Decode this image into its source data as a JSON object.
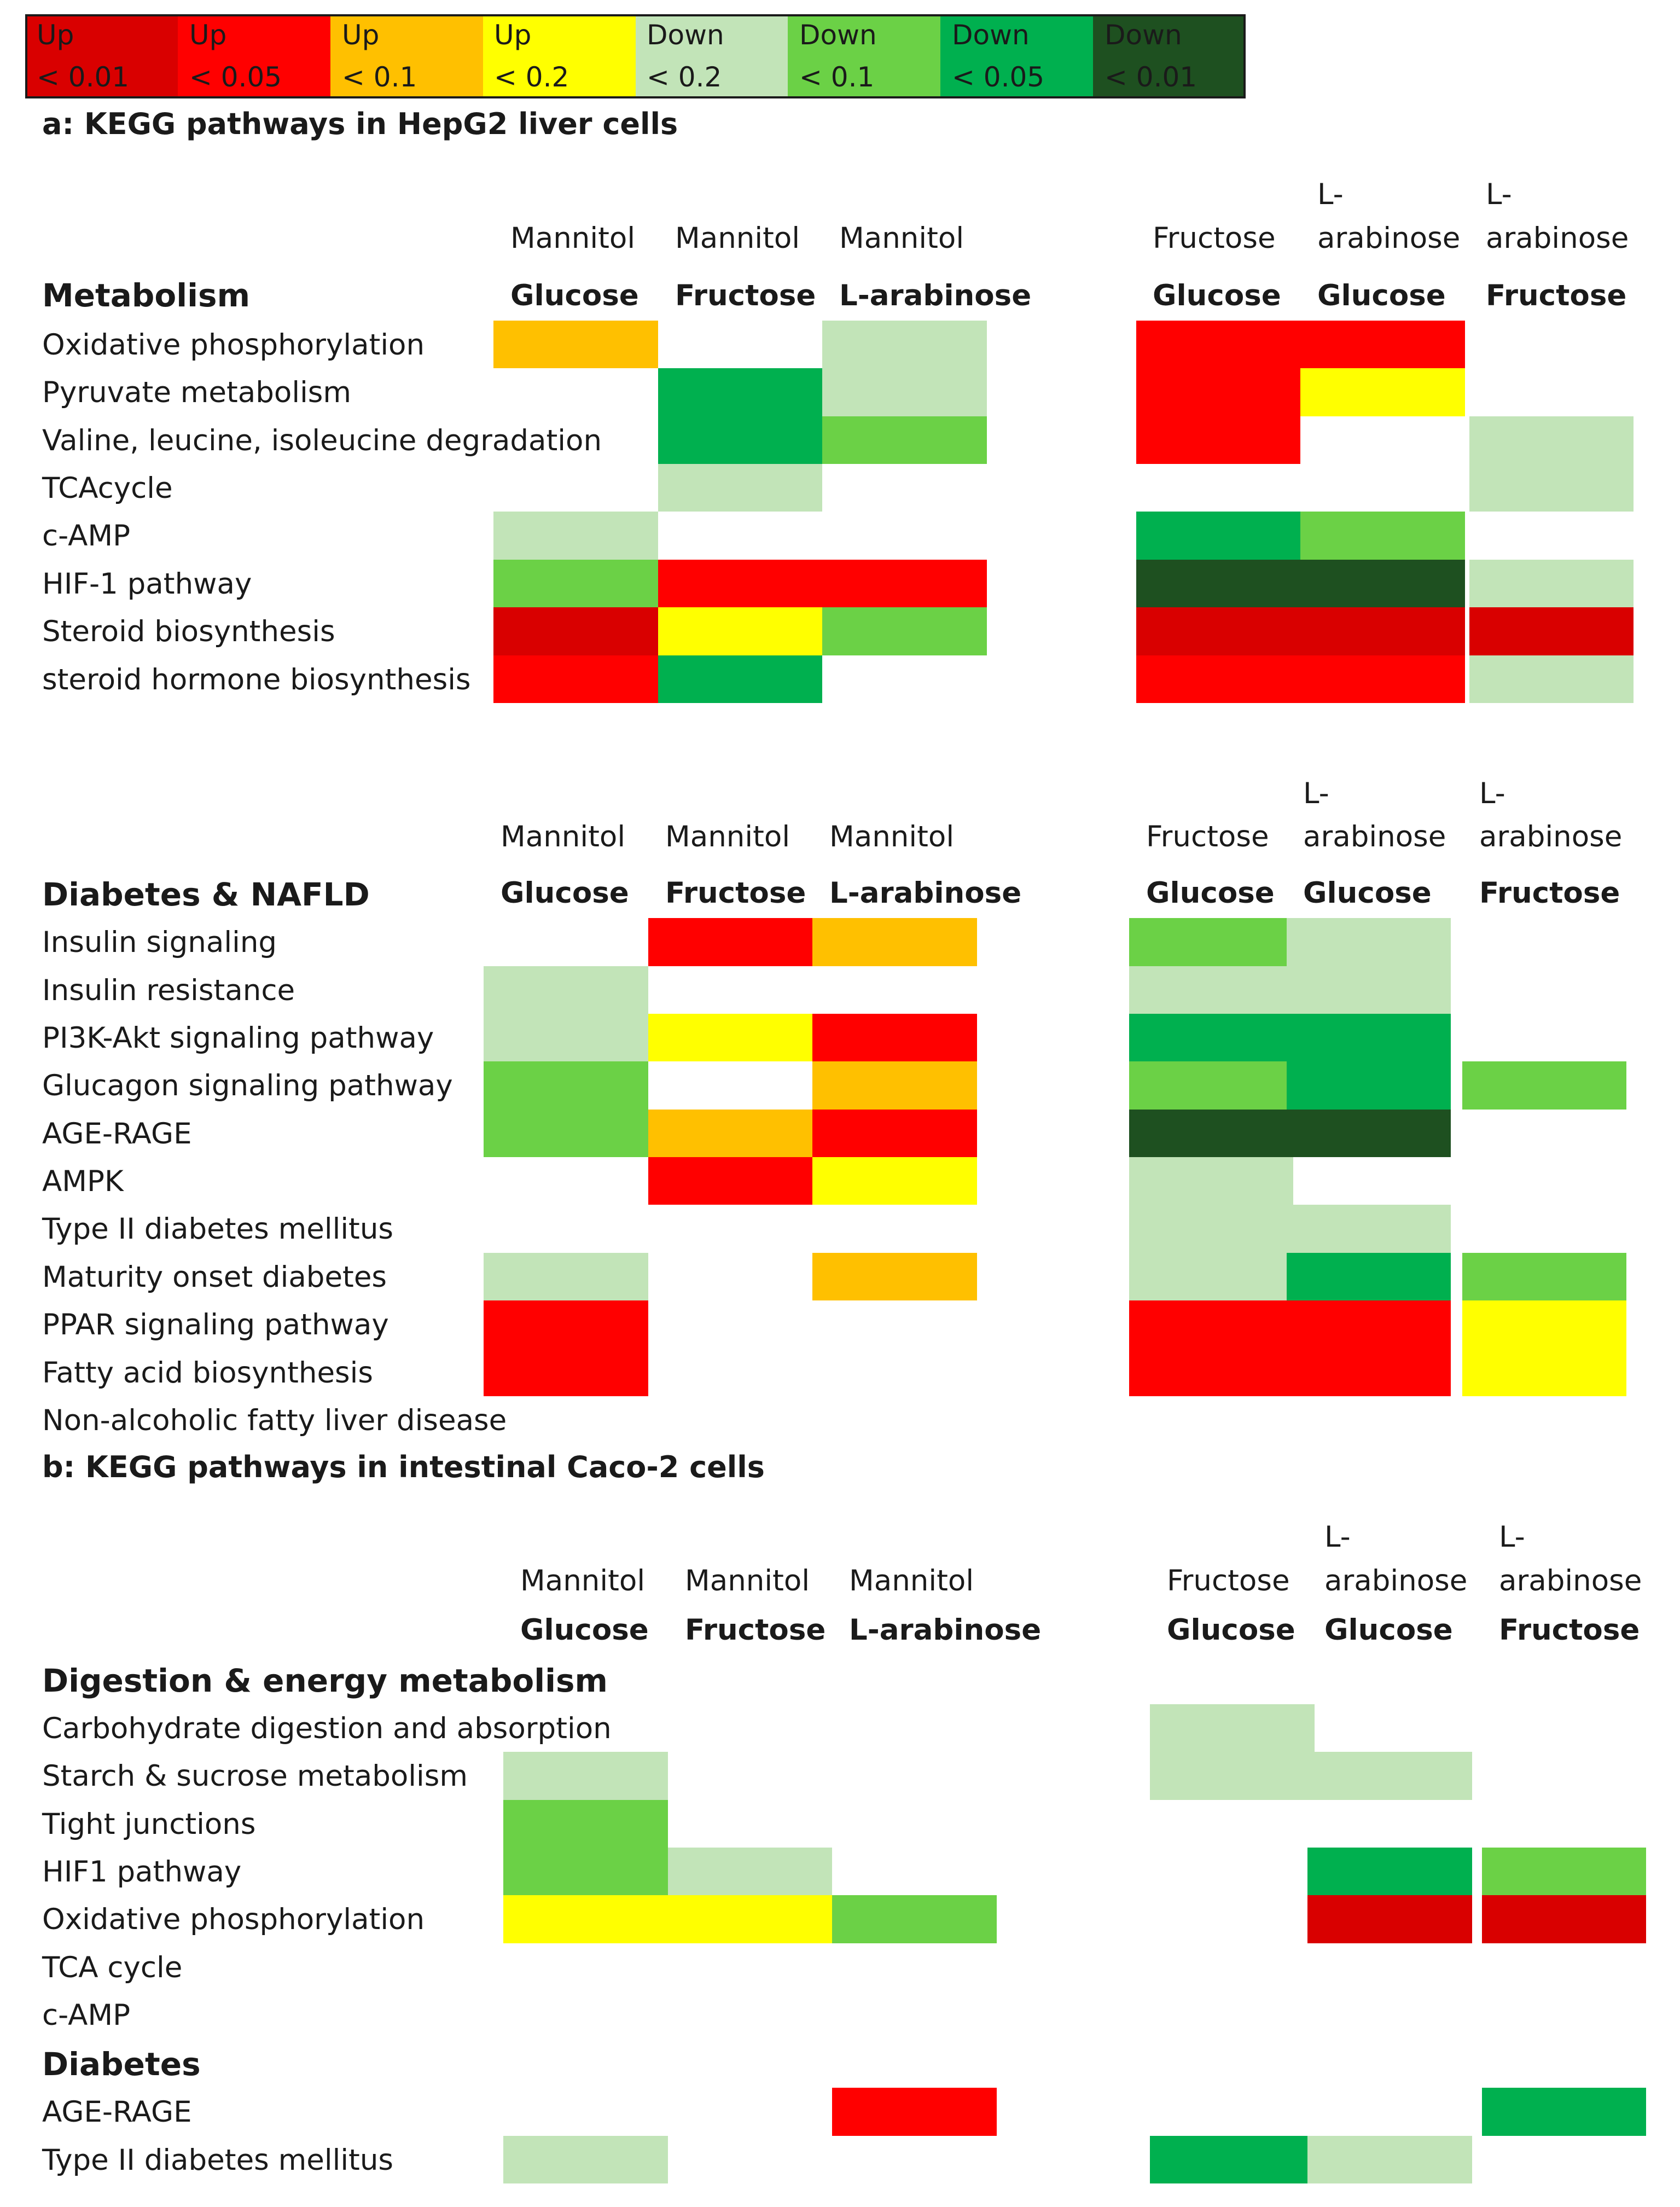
{
  "colors": {
    "up_001": "#d90000",
    "up_005": "#ff0000",
    "up_01": "#ffc000",
    "up_02": "#ffff00",
    "down_02": "#c2e4b8",
    "down_01": "#6bd146",
    "down_005": "#00b04f",
    "down_001": "#1e5020"
  },
  "legend": [
    {
      "key": "up_001",
      "line1": "Up",
      "line2": "< 0.01"
    },
    {
      "key": "up_005",
      "line1": "Up",
      "line2": "< 0.05"
    },
    {
      "key": "up_01",
      "line1": "Up",
      "line2": "< 0.1"
    },
    {
      "key": "up_02",
      "line1": "Up",
      "line2": "< 0.2"
    },
    {
      "key": "down_02",
      "line1": "Down",
      "line2": "< 0.2"
    },
    {
      "key": "down_01",
      "line1": "Down",
      "line2": "< 0.1"
    },
    {
      "key": "down_005",
      "line1": "Down",
      "line2": "< 0.05"
    },
    {
      "key": "down_001",
      "line1": "Down",
      "line2": "< 0.01"
    }
  ],
  "chart_data": {
    "type": "heatmap",
    "title_a": "a: KEGG pathways in HepG2 liver cells",
    "title_b": "b: KEGG pathways in intestinal Caco-2 cells",
    "columns": [
      {
        "top": "Mannitol",
        "bottom": "Glucose"
      },
      {
        "top": "Mannitol",
        "bottom": "Fructose"
      },
      {
        "top": "Mannitol",
        "bottom": "L-arabinose"
      },
      {
        "top": "Fructose",
        "bottom": "Glucose"
      },
      {
        "top_pre": "L-",
        "top": "arabinose",
        "bottom": "Glucose"
      },
      {
        "top_pre": "L-",
        "top": "arabinose",
        "bottom": "Fructose"
      }
    ],
    "groups": [
      {
        "title": "Metabolism",
        "rows": [
          {
            "label": "Oxidative phosphorylation",
            "cells": [
              "up_01",
              null,
              "down_02",
              "up_005",
              "up_005",
              null
            ]
          },
          {
            "label": "Pyruvate metabolism",
            "cells": [
              null,
              "down_005",
              "down_02",
              "up_005",
              "up_02",
              null
            ]
          },
          {
            "label": "Valine, leucine, isoleucine degradation",
            "cells": [
              null,
              "down_005",
              "down_01",
              "up_005",
              null,
              "down_02"
            ]
          },
          {
            "label": "TCAcycle",
            "cells": [
              null,
              "down_02",
              null,
              null,
              null,
              "down_02"
            ]
          },
          {
            "label": "c-AMP",
            "cells": [
              "down_02",
              null,
              null,
              "down_005",
              "down_01",
              null
            ]
          },
          {
            "label": "HIF-1 pathway",
            "cells": [
              "down_01",
              "up_005",
              "up_005",
              "down_001",
              "down_001",
              "down_02"
            ]
          },
          {
            "label": "Steroid biosynthesis",
            "cells": [
              "up_001",
              "up_02",
              "down_01",
              "up_001",
              "up_001",
              "up_001"
            ]
          },
          {
            "label": "steroid hormone biosynthesis",
            "cells": [
              "up_005",
              "down_005",
              null,
              "up_005",
              "up_005",
              "down_02"
            ]
          }
        ]
      },
      {
        "title": "Diabetes & NAFLD",
        "rows": [
          {
            "label": "Insulin signaling",
            "cells": [
              null,
              "up_005",
              "up_01",
              "down_01",
              "down_02",
              null
            ]
          },
          {
            "label": "Insulin resistance",
            "cells": [
              "down_02",
              null,
              null,
              "down_02",
              "down_02",
              null
            ]
          },
          {
            "label": "PI3K-Akt signaling pathway",
            "cells": [
              "down_02",
              "up_02",
              "up_005",
              "down_005",
              "down_005",
              null
            ]
          },
          {
            "label": "Glucagon signaling pathway",
            "cells": [
              "down_01",
              null,
              "up_01",
              "down_01",
              "down_005",
              "down_01"
            ]
          },
          {
            "label": "AGE-RAGE",
            "cells": [
              "down_01",
              "up_01",
              "up_005",
              "down_001",
              "down_001",
              null
            ]
          },
          {
            "label": "AMPK",
            "cells": [
              null,
              "up_005",
              "up_02",
              "down_02",
              null,
              null
            ]
          },
          {
            "label": "Type II diabetes mellitus",
            "cells": [
              null,
              null,
              null,
              "down_02",
              "down_02",
              null
            ]
          },
          {
            "label": "Maturity onset diabetes",
            "cells": [
              "down_02",
              null,
              "up_01",
              "down_02",
              "down_005",
              "down_01"
            ]
          },
          {
            "label": "PPAR signaling pathway",
            "cells": [
              "up_005",
              null,
              null,
              "up_005",
              "up_005",
              "up_02"
            ]
          },
          {
            "label": "Fatty acid biosynthesis",
            "cells": [
              "up_005",
              null,
              null,
              "up_005",
              "up_005",
              "up_02"
            ]
          },
          {
            "label": "Non-alcoholic fatty liver disease",
            "cells": [
              null,
              null,
              null,
              null,
              null,
              null
            ]
          }
        ]
      },
      {
        "title": "Digestion & energy metabolism",
        "rows": [
          {
            "label": "Carbohydrate digestion and absorption",
            "cells": [
              null,
              null,
              null,
              "down_02",
              null,
              null
            ]
          },
          {
            "label": "Starch & sucrose metabolism",
            "cells": [
              "down_02",
              null,
              null,
              "down_02",
              "down_02",
              null
            ]
          },
          {
            "label": "Tight junctions",
            "cells": [
              "down_01",
              null,
              null,
              null,
              null,
              null
            ]
          },
          {
            "label": "HIF1 pathway",
            "cells": [
              "down_01",
              "down_02",
              null,
              null,
              "down_005",
              "down_01"
            ]
          },
          {
            "label": "Oxidative phosphorylation",
            "cells": [
              "up_02",
              "up_02",
              "down_01",
              null,
              "up_001",
              "up_001"
            ]
          },
          {
            "label": "TCA cycle",
            "cells": [
              null,
              null,
              null,
              null,
              null,
              null
            ]
          },
          {
            "label": "c-AMP",
            "cells": [
              null,
              null,
              null,
              null,
              null,
              null
            ]
          }
        ]
      },
      {
        "title": "Diabetes",
        "rows": [
          {
            "label": "AGE-RAGE",
            "cells": [
              null,
              null,
              "up_005",
              null,
              null,
              "down_005"
            ]
          },
          {
            "label": "Type II diabetes mellitus",
            "cells": [
              "down_02",
              null,
              null,
              "down_005",
              "down_02",
              null
            ]
          }
        ]
      }
    ]
  }
}
